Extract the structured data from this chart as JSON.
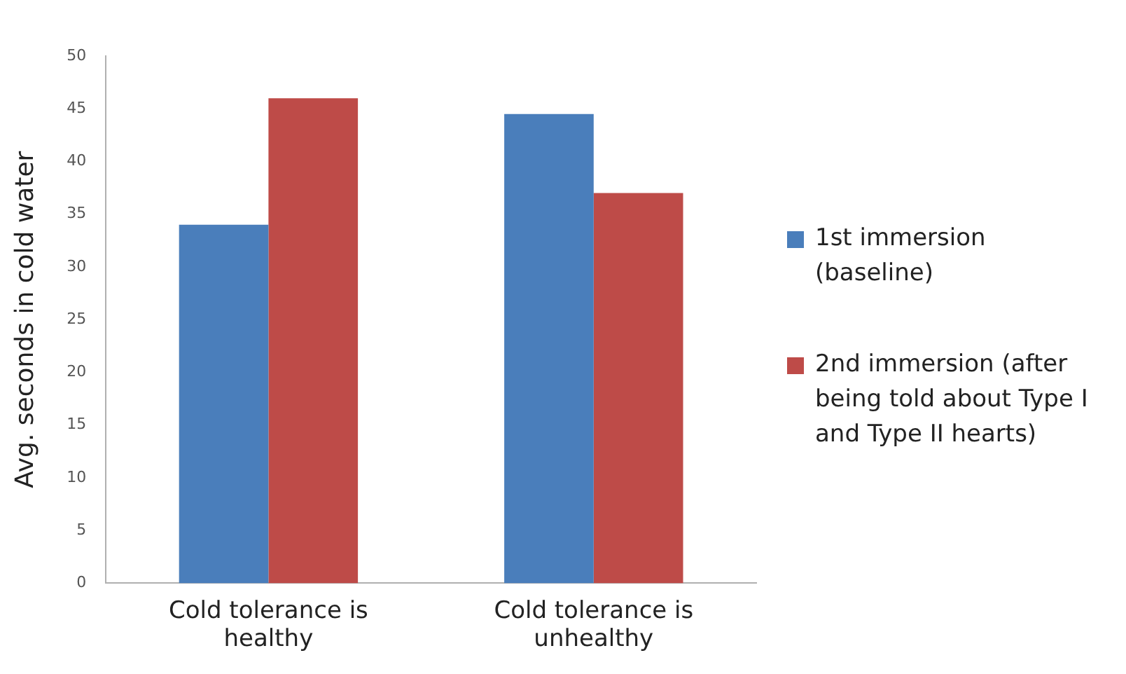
{
  "chart_data": {
    "type": "bar",
    "ylabel": "Avg. seconds in cold water",
    "categories": [
      "Cold tolerance is healthy",
      "Cold tolerance is unhealthy"
    ],
    "series": [
      {
        "name": "1st immersion (baseline)",
        "color": "#4a7ebb",
        "values": [
          34,
          44.5
        ]
      },
      {
        "name": "2nd immersion (after being told about Type I and Type II hearts)",
        "color": "#be4b48",
        "values": [
          46,
          37
        ]
      }
    ],
    "ylim": [
      0,
      50
    ],
    "yticks": [
      0,
      5,
      10,
      15,
      20,
      25,
      30,
      35,
      40,
      45,
      50
    ],
    "grid": false,
    "legend": "right"
  }
}
